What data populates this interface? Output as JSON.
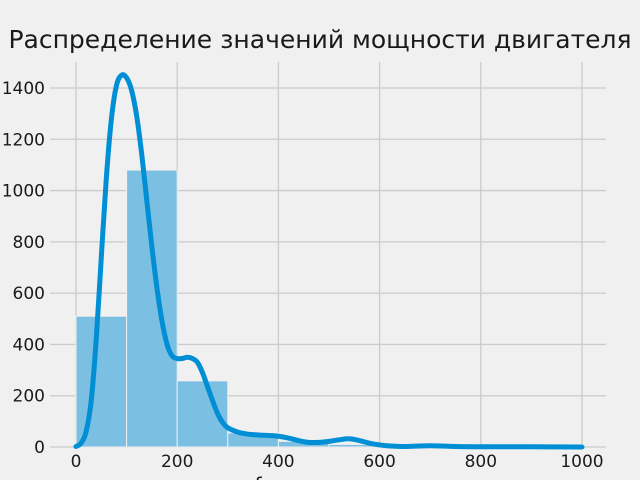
{
  "chart_data": {
    "type": "bar",
    "title": "Распределение значений мощности двигателя",
    "xlabel": "f",
    "ylabel": "",
    "xlim": [
      -25,
      1000
    ],
    "ylim": [
      0,
      1500
    ],
    "xticks": [
      0,
      200,
      400,
      600,
      800,
      1000
    ],
    "yticks": [
      0,
      200,
      400,
      600,
      800,
      1000,
      1200,
      1400
    ],
    "grid": true,
    "histogram": {
      "bin_edges": [
        0,
        100,
        200,
        300,
        400,
        500,
        600,
        700,
        800,
        900,
        1000
      ],
      "counts": [
        510,
        1080,
        258,
        55,
        22,
        10,
        5,
        3,
        2,
        2
      ],
      "color": "#7bbfe2"
    },
    "kde": {
      "color": "#008fd5",
      "x": [
        0,
        10,
        20,
        30,
        40,
        50,
        60,
        70,
        80,
        90,
        100,
        110,
        120,
        130,
        140,
        150,
        160,
        170,
        180,
        190,
        200,
        210,
        220,
        230,
        240,
        250,
        260,
        270,
        280,
        290,
        300,
        320,
        340,
        360,
        380,
        400,
        420,
        440,
        460,
        480,
        500,
        520,
        540,
        560,
        580,
        600,
        620,
        650,
        700,
        750,
        800,
        900,
        1000
      ],
      "y": [
        2,
        15,
        60,
        180,
        420,
        740,
        1050,
        1280,
        1410,
        1450,
        1440,
        1390,
        1290,
        1140,
        960,
        780,
        620,
        490,
        400,
        355,
        345,
        345,
        350,
        345,
        330,
        290,
        235,
        180,
        130,
        95,
        75,
        58,
        50,
        47,
        45,
        42,
        35,
        25,
        18,
        18,
        22,
        28,
        32,
        25,
        15,
        8,
        4,
        2,
        5,
        2,
        1,
        1,
        0
      ]
    }
  }
}
